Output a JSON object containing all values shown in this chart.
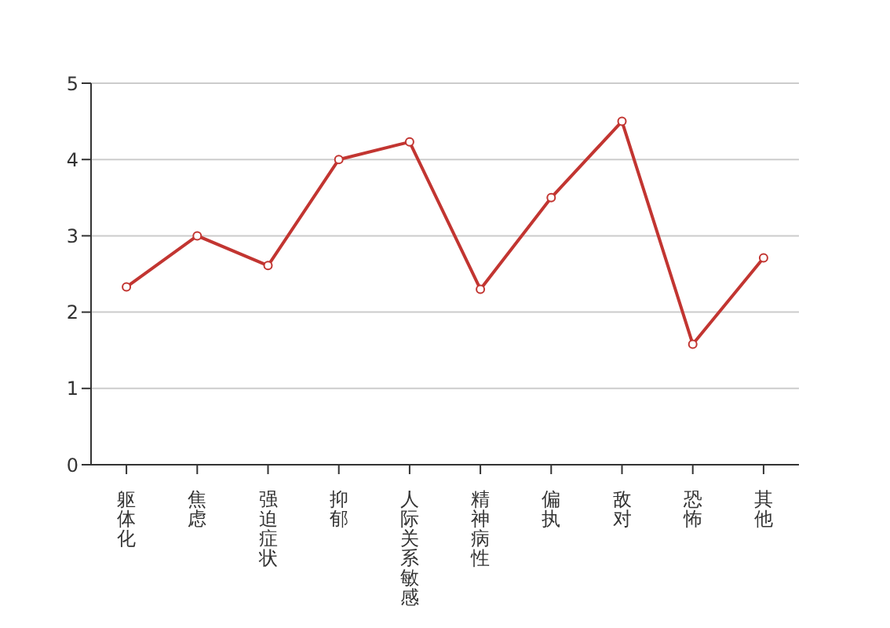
{
  "chart_data": {
    "type": "line",
    "categories": [
      "躯体化",
      "焦虑",
      "强迫症状",
      "抑郁",
      "人际关系敏感",
      "精神病性",
      "偏执",
      "敌对",
      "恐怖",
      "其他"
    ],
    "series": [
      {
        "color": "#c23531",
        "values": [
          2.33,
          3.0,
          2.61,
          4.0,
          4.23,
          2.3,
          3.5,
          4.5,
          1.58,
          2.71
        ]
      }
    ],
    "ylim": [
      0,
      5
    ],
    "yticks": [
      0,
      1,
      2,
      3,
      4,
      5
    ],
    "grid": "y",
    "marker": "circle",
    "line_style": "solid",
    "legend": false
  }
}
